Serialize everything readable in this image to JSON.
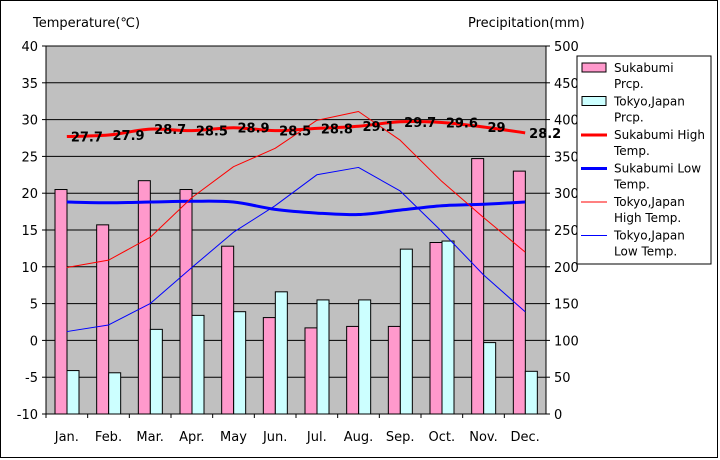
{
  "chart_data": {
    "type": "bar",
    "ylabel_left": "Temperature(℃)",
    "ylabel_right": "Precipitation(mm)",
    "categories": [
      "Jan.",
      "Feb.",
      "Mar.",
      "Apr.",
      "May",
      "Jun.",
      "Jul.",
      "Aug.",
      "Sep.",
      "Oct.",
      "Nov.",
      "Dec."
    ],
    "ylim_left": [
      -10,
      40
    ],
    "ylim_right": [
      0,
      500
    ],
    "yticks_left": [
      "40",
      "35",
      "30",
      "25",
      "20",
      "15",
      "10",
      "5",
      "0",
      "-5",
      "-10"
    ],
    "yticks_right": [
      "500",
      "450",
      "400",
      "350",
      "300",
      "250",
      "200",
      "150",
      "100",
      "50",
      "0"
    ],
    "grid": true,
    "legend_position": "right",
    "series": [
      {
        "name": "Sukabumi Prcp.",
        "kind": "bar",
        "axis": "right",
        "color": "#ff99cc",
        "values": [
          305,
          257,
          317,
          305,
          228,
          131,
          117,
          119,
          119,
          233,
          347,
          330
        ]
      },
      {
        "name": "Tokyo,Japan Prcp.",
        "kind": "bar",
        "axis": "right",
        "color": "#ccffff",
        "values": [
          59,
          56,
          115,
          134,
          139,
          166,
          155,
          155,
          224,
          235,
          97,
          58
        ]
      },
      {
        "name": "Sukabumi High Temp.",
        "kind": "line",
        "axis": "left",
        "color": "#ff0000",
        "width": 3,
        "values": [
          27.7,
          27.9,
          28.7,
          28.5,
          28.9,
          28.5,
          28.8,
          29.1,
          29.7,
          29.6,
          29,
          28.2
        ],
        "labels": [
          "27.7",
          "27.9",
          "28.7",
          "28.5",
          "28.9",
          "28.5",
          "28.8",
          "29.1",
          "29.7",
          "29.6",
          "29",
          "28.2"
        ]
      },
      {
        "name": "Sukabumi Low Temp.",
        "kind": "line",
        "axis": "left",
        "color": "#0000ff",
        "width": 3,
        "values": [
          18.8,
          18.7,
          18.8,
          18.9,
          18.8,
          17.8,
          17.3,
          17.1,
          17.7,
          18.3,
          18.5,
          18.8
        ]
      },
      {
        "name": "Tokyo,Japan High Temp.",
        "kind": "line",
        "axis": "left",
        "color": "#ff0000",
        "width": 1,
        "values": [
          9.9,
          10.9,
          14.0,
          19.4,
          23.6,
          26.1,
          29.9,
          31.1,
          27.2,
          21.6,
          16.7,
          12.0
        ]
      },
      {
        "name": "Tokyo,Japan Low Temp.",
        "kind": "line",
        "axis": "left",
        "color": "#0000ff",
        "width": 1,
        "values": [
          1.2,
          2.1,
          5.0,
          9.9,
          14.7,
          18.3,
          22.5,
          23.5,
          20.3,
          14.8,
          8.9,
          3.9
        ]
      }
    ]
  },
  "legend": {
    "items": [
      {
        "lines": [
          "Sukabumi",
          "Prcp."
        ],
        "kind": "bar",
        "color": "#ff99cc"
      },
      {
        "lines": [
          "Tokyo,Japan",
          "Prcp."
        ],
        "kind": "bar",
        "color": "#ccffff"
      },
      {
        "lines": [
          "Sukabumi High",
          "Temp."
        ],
        "kind": "line",
        "color": "#ff0000",
        "width": 3
      },
      {
        "lines": [
          "Sukabumi Low",
          "Temp."
        ],
        "kind": "line",
        "color": "#0000ff",
        "width": 3
      },
      {
        "lines": [
          "Tokyo,Japan",
          "High Temp."
        ],
        "kind": "line",
        "color": "#ff0000",
        "width": 1
      },
      {
        "lines": [
          "Tokyo,Japan",
          "Low Temp."
        ],
        "kind": "line",
        "color": "#0000ff",
        "width": 1
      }
    ]
  },
  "colors": {
    "plot_bg": "#c0c0c0",
    "grid": "#000000"
  }
}
